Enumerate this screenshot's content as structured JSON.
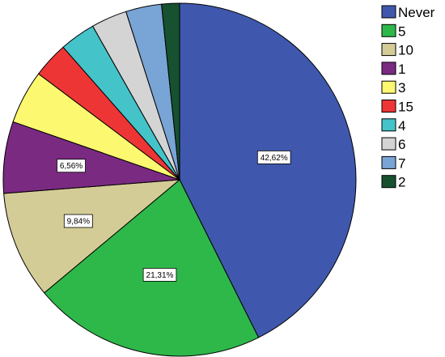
{
  "chart_data": {
    "type": "pie",
    "slices": [
      {
        "label": "Never",
        "value": 42.62,
        "color": "#3f58ad",
        "data_label": "42,62%"
      },
      {
        "label": "5",
        "value": 21.31,
        "color": "#2eb84a",
        "data_label": "21,31%"
      },
      {
        "label": "10",
        "value": 9.84,
        "color": "#d4cc96",
        "data_label": "9,84%"
      },
      {
        "label": "1",
        "value": 6.56,
        "color": "#7b2a82",
        "data_label": "6,56%"
      },
      {
        "label": "3",
        "value": 4.92,
        "color": "#fcf86f",
        "data_label": ""
      },
      {
        "label": "15",
        "value": 3.28,
        "color": "#ee3536",
        "data_label": ""
      },
      {
        "label": "4",
        "value": 3.28,
        "color": "#44c3c9",
        "data_label": ""
      },
      {
        "label": "6",
        "value": 3.28,
        "color": "#d4d4d4",
        "data_label": ""
      },
      {
        "label": "7",
        "value": 3.28,
        "color": "#79a4d6",
        "data_label": ""
      },
      {
        "label": "2",
        "value": 1.64,
        "color": "#17512f",
        "data_label": ""
      }
    ],
    "start_angle_deg": 0,
    "direction": "clockwise",
    "legend_position": "right"
  }
}
